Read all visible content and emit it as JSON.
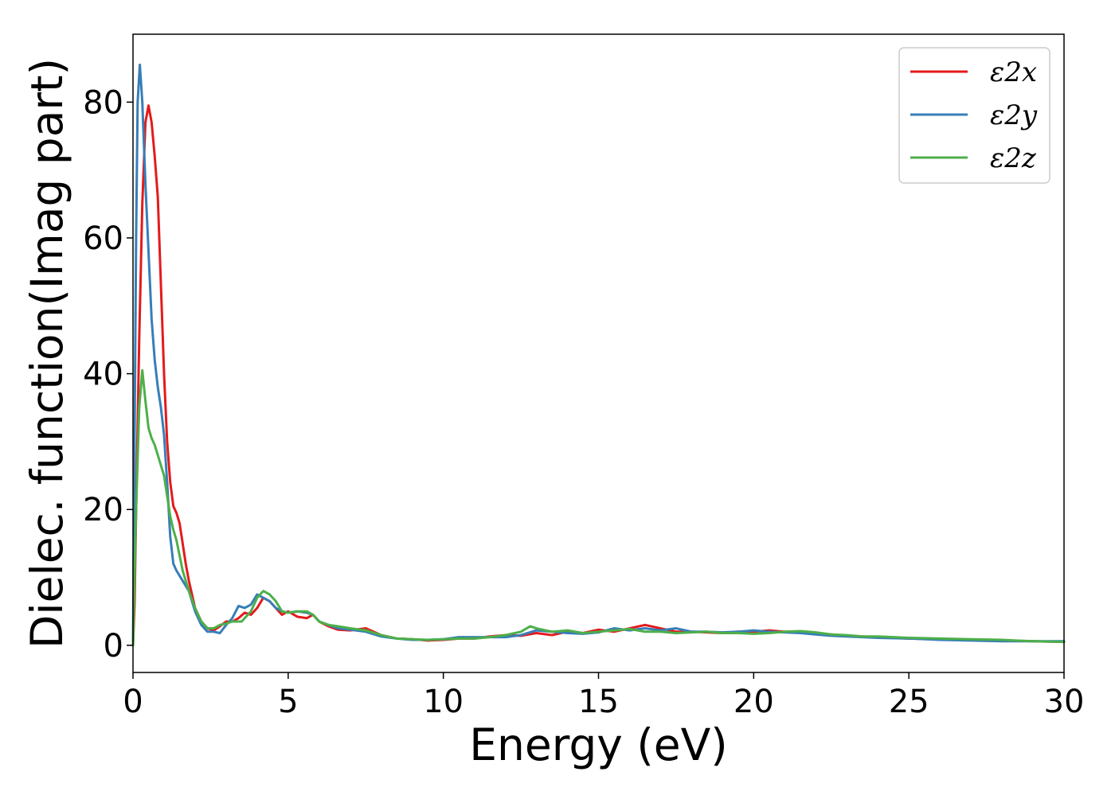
{
  "chart_data": {
    "type": "line",
    "title": "",
    "xlabel": "Energy (eV)",
    "ylabel": "Dielec. function(Imag part)",
    "xlim": [
      0,
      30
    ],
    "ylim": [
      -4,
      90
    ],
    "xticks": [
      0,
      5,
      10,
      15,
      20,
      25,
      30
    ],
    "yticks": [
      0,
      20,
      40,
      60,
      80
    ],
    "xtick_labels": [
      "0",
      "5",
      "10",
      "15",
      "20",
      "25",
      "30"
    ],
    "ytick_labels": [
      "0",
      "20",
      "40",
      "60",
      "80"
    ],
    "grid": false,
    "legend_position": "top-right",
    "series": [
      {
        "name": "ε2x",
        "color": "#e41a1c",
        "points": [
          [
            0,
            0
          ],
          [
            0.05,
            6
          ],
          [
            0.1,
            20
          ],
          [
            0.2,
            45
          ],
          [
            0.3,
            65
          ],
          [
            0.4,
            77
          ],
          [
            0.5,
            79.5
          ],
          [
            0.6,
            77
          ],
          [
            0.7,
            72
          ],
          [
            0.8,
            66
          ],
          [
            0.9,
            53
          ],
          [
            1.0,
            40
          ],
          [
            1.1,
            30
          ],
          [
            1.2,
            24
          ],
          [
            1.3,
            20.5
          ],
          [
            1.4,
            19.5
          ],
          [
            1.5,
            18
          ],
          [
            1.6,
            15
          ],
          [
            1.7,
            12
          ],
          [
            1.8,
            9.5
          ],
          [
            2.0,
            5.5
          ],
          [
            2.2,
            3.5
          ],
          [
            2.4,
            2.5
          ],
          [
            2.6,
            2.2
          ],
          [
            2.8,
            2.8
          ],
          [
            3.0,
            3.5
          ],
          [
            3.2,
            3.5
          ],
          [
            3.4,
            4
          ],
          [
            3.6,
            4.8
          ],
          [
            3.8,
            4.5
          ],
          [
            4.0,
            5.5
          ],
          [
            4.2,
            7
          ],
          [
            4.4,
            6.5
          ],
          [
            4.6,
            5.5
          ],
          [
            4.8,
            4.5
          ],
          [
            5.0,
            5
          ],
          [
            5.3,
            4.2
          ],
          [
            5.6,
            4
          ],
          [
            5.8,
            4.5
          ],
          [
            6.0,
            3.5
          ],
          [
            6.3,
            2.8
          ],
          [
            6.6,
            2.3
          ],
          [
            7.0,
            2.2
          ],
          [
            7.5,
            2.5
          ],
          [
            8.0,
            1.5
          ],
          [
            8.5,
            1.0
          ],
          [
            9.0,
            0.9
          ],
          [
            9.5,
            0.7
          ],
          [
            10.0,
            0.8
          ],
          [
            10.5,
            1.0
          ],
          [
            11.0,
            1.0
          ],
          [
            11.5,
            1.3
          ],
          [
            12.0,
            1.5
          ],
          [
            12.5,
            1.4
          ],
          [
            13.0,
            1.8
          ],
          [
            13.5,
            1.5
          ],
          [
            14.0,
            2.0
          ],
          [
            14.5,
            1.8
          ],
          [
            15.0,
            2.3
          ],
          [
            15.5,
            2.0
          ],
          [
            16.0,
            2.5
          ],
          [
            16.5,
            3.0
          ],
          [
            17.0,
            2.5
          ],
          [
            17.5,
            2.0
          ],
          [
            18.0,
            2.0
          ],
          [
            18.5,
            1.9
          ],
          [
            19.0,
            1.8
          ],
          [
            19.5,
            2.0
          ],
          [
            20.0,
            2.0
          ],
          [
            20.5,
            2.2
          ],
          [
            21.0,
            2.0
          ],
          [
            21.5,
            1.9
          ],
          [
            22.0,
            1.8
          ],
          [
            22.5,
            1.6
          ],
          [
            23.0,
            1.4
          ],
          [
            23.5,
            1.3
          ],
          [
            24.0,
            1.2
          ],
          [
            25.0,
            1.0
          ],
          [
            26.0,
            0.9
          ],
          [
            27.0,
            0.8
          ],
          [
            28.0,
            0.7
          ],
          [
            29.0,
            0.6
          ],
          [
            30.0,
            0.5
          ]
        ]
      },
      {
        "name": "ε2y",
        "color": "#377eb8",
        "points": [
          [
            0,
            0
          ],
          [
            0.05,
            30
          ],
          [
            0.1,
            60
          ],
          [
            0.15,
            80
          ],
          [
            0.22,
            85.5
          ],
          [
            0.3,
            80
          ],
          [
            0.4,
            68
          ],
          [
            0.5,
            58
          ],
          [
            0.6,
            48
          ],
          [
            0.7,
            42
          ],
          [
            0.8,
            38
          ],
          [
            0.9,
            35
          ],
          [
            1.0,
            31
          ],
          [
            1.1,
            24
          ],
          [
            1.2,
            16
          ],
          [
            1.3,
            12
          ],
          [
            1.4,
            11
          ],
          [
            1.6,
            9.5
          ],
          [
            1.8,
            8
          ],
          [
            2.0,
            5
          ],
          [
            2.2,
            3
          ],
          [
            2.4,
            2
          ],
          [
            2.6,
            2
          ],
          [
            2.8,
            1.8
          ],
          [
            3.0,
            3
          ],
          [
            3.2,
            4
          ],
          [
            3.4,
            5.8
          ],
          [
            3.6,
            5.5
          ],
          [
            3.8,
            6
          ],
          [
            4.0,
            7.5
          ],
          [
            4.2,
            7
          ],
          [
            4.4,
            6.5
          ],
          [
            4.6,
            5.5
          ],
          [
            4.8,
            5
          ],
          [
            5.0,
            4.8
          ],
          [
            5.3,
            5
          ],
          [
            5.6,
            4.8
          ],
          [
            5.8,
            4.5
          ],
          [
            6.0,
            3.5
          ],
          [
            6.3,
            3.0
          ],
          [
            6.6,
            2.5
          ],
          [
            7.0,
            2.3
          ],
          [
            7.5,
            2.0
          ],
          [
            8.0,
            1.3
          ],
          [
            8.5,
            1.0
          ],
          [
            9.0,
            0.8
          ],
          [
            9.5,
            0.8
          ],
          [
            10.0,
            0.9
          ],
          [
            10.5,
            1.2
          ],
          [
            11.0,
            1.2
          ],
          [
            11.5,
            1.2
          ],
          [
            12.0,
            1.2
          ],
          [
            12.5,
            1.5
          ],
          [
            13.0,
            2.2
          ],
          [
            13.5,
            2.0
          ],
          [
            14.0,
            1.8
          ],
          [
            14.5,
            1.7
          ],
          [
            15.0,
            1.9
          ],
          [
            15.5,
            2.5
          ],
          [
            16.0,
            2.2
          ],
          [
            16.5,
            2.5
          ],
          [
            17.0,
            2.2
          ],
          [
            17.5,
            2.5
          ],
          [
            18.0,
            2.0
          ],
          [
            18.5,
            2.0
          ],
          [
            19.0,
            1.9
          ],
          [
            19.5,
            2.0
          ],
          [
            20.0,
            2.2
          ],
          [
            20.5,
            2.0
          ],
          [
            21.0,
            1.9
          ],
          [
            21.5,
            1.8
          ],
          [
            22.0,
            1.6
          ],
          [
            22.5,
            1.4
          ],
          [
            23.0,
            1.3
          ],
          [
            23.5,
            1.2
          ],
          [
            24.0,
            1.1
          ],
          [
            25.0,
            1.0
          ],
          [
            26.0,
            0.8
          ],
          [
            27.0,
            0.7
          ],
          [
            28.0,
            0.6
          ],
          [
            29.0,
            0.6
          ],
          [
            30.0,
            0.6
          ]
        ]
      },
      {
        "name": "ε2z",
        "color": "#4daf4a",
        "points": [
          [
            0,
            0
          ],
          [
            0.05,
            10
          ],
          [
            0.1,
            20
          ],
          [
            0.2,
            35
          ],
          [
            0.3,
            40.5
          ],
          [
            0.4,
            36
          ],
          [
            0.5,
            32
          ],
          [
            0.6,
            30.5
          ],
          [
            0.7,
            29.5
          ],
          [
            0.8,
            28
          ],
          [
            0.9,
            26.5
          ],
          [
            1.0,
            25
          ],
          [
            1.1,
            22
          ],
          [
            1.2,
            19
          ],
          [
            1.3,
            17
          ],
          [
            1.4,
            15.5
          ],
          [
            1.6,
            11
          ],
          [
            1.8,
            8
          ],
          [
            2.0,
            5.5
          ],
          [
            2.2,
            3.5
          ],
          [
            2.4,
            2.5
          ],
          [
            2.6,
            2.5
          ],
          [
            2.8,
            3
          ],
          [
            3.0,
            3.2
          ],
          [
            3.2,
            3.5
          ],
          [
            3.5,
            3.5
          ],
          [
            3.8,
            5
          ],
          [
            4.0,
            7
          ],
          [
            4.2,
            8
          ],
          [
            4.4,
            7.5
          ],
          [
            4.6,
            6.5
          ],
          [
            4.8,
            5
          ],
          [
            5.0,
            4.8
          ],
          [
            5.3,
            5
          ],
          [
            5.6,
            5
          ],
          [
            5.8,
            4.5
          ],
          [
            6.0,
            3.5
          ],
          [
            6.3,
            3.0
          ],
          [
            6.6,
            2.8
          ],
          [
            7.0,
            2.5
          ],
          [
            7.5,
            2.2
          ],
          [
            8.0,
            1.5
          ],
          [
            8.5,
            1.0
          ],
          [
            9.0,
            0.9
          ],
          [
            9.5,
            0.8
          ],
          [
            10.0,
            0.9
          ],
          [
            10.5,
            1.0
          ],
          [
            11.0,
            1.0
          ],
          [
            11.5,
            1.2
          ],
          [
            12.0,
            1.5
          ],
          [
            12.5,
            2.0
          ],
          [
            12.8,
            2.8
          ],
          [
            13.0,
            2.5
          ],
          [
            13.5,
            2.0
          ],
          [
            14.0,
            2.2
          ],
          [
            14.5,
            1.8
          ],
          [
            15.0,
            2.0
          ],
          [
            15.5,
            2.2
          ],
          [
            16.0,
            2.4
          ],
          [
            16.5,
            2.0
          ],
          [
            17.0,
            2.0
          ],
          [
            17.5,
            1.8
          ],
          [
            18.0,
            1.9
          ],
          [
            18.5,
            2.0
          ],
          [
            19.0,
            1.8
          ],
          [
            19.5,
            1.8
          ],
          [
            20.0,
            1.7
          ],
          [
            20.5,
            1.8
          ],
          [
            21.0,
            2.0
          ],
          [
            21.5,
            2.1
          ],
          [
            22.0,
            1.9
          ],
          [
            22.5,
            1.6
          ],
          [
            23.0,
            1.5
          ],
          [
            23.5,
            1.3
          ],
          [
            24.0,
            1.3
          ],
          [
            25.0,
            1.1
          ],
          [
            26.0,
            1.0
          ],
          [
            27.0,
            0.9
          ],
          [
            28.0,
            0.8
          ],
          [
            29.0,
            0.6
          ],
          [
            30.0,
            0.5
          ]
        ]
      }
    ]
  }
}
